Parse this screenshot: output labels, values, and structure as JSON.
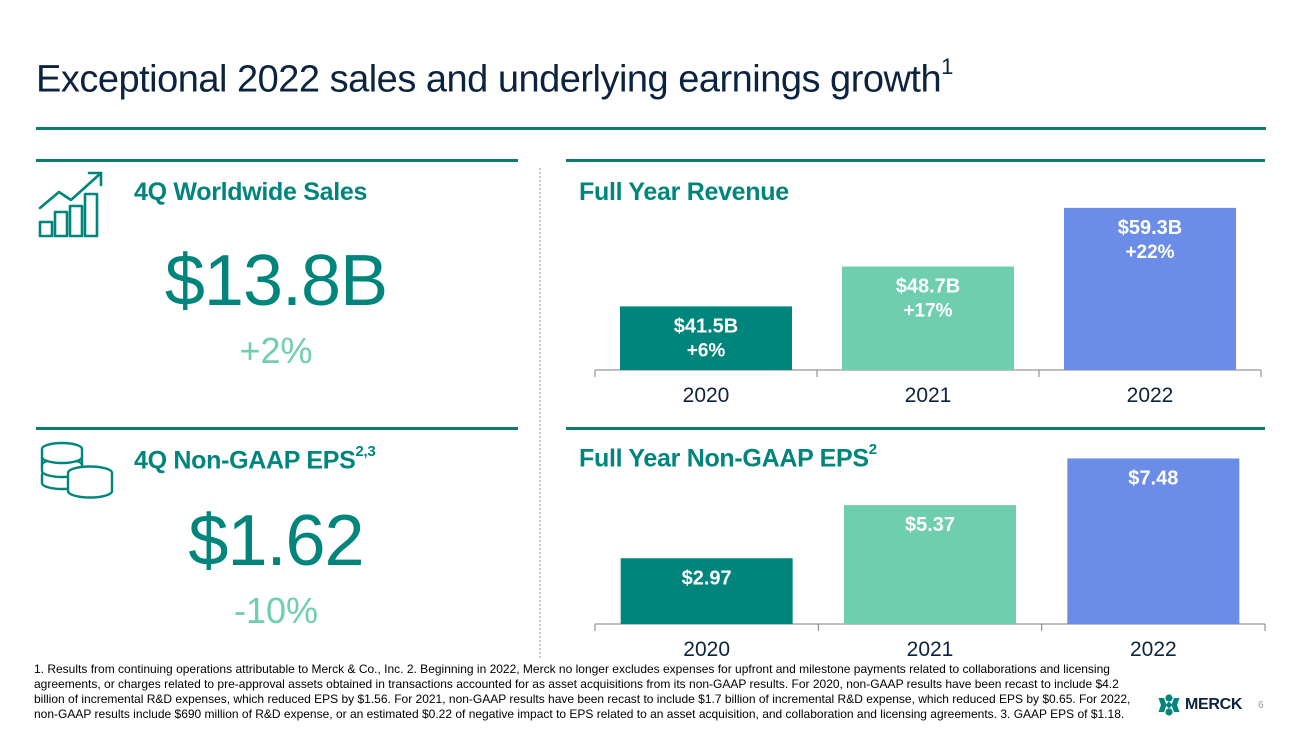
{
  "slide": {
    "title": "Exceptional 2022 sales and underlying earnings growth",
    "title_sup": "1",
    "page_number": "6"
  },
  "kpis": {
    "sales": {
      "heading": "4Q Worldwide Sales",
      "value": "$13.8B",
      "change": "+2%",
      "icon": "growth-chart-icon"
    },
    "eps": {
      "heading": "4Q Non-GAAP EPS",
      "heading_sup": "2,3",
      "value": "$1.62",
      "change": "-10%",
      "icon": "coins-icon"
    }
  },
  "chart_data": [
    {
      "type": "bar",
      "title": "Full Year Revenue",
      "title_sup": "",
      "categories": [
        "2020",
        "2021",
        "2022"
      ],
      "values": [
        41.5,
        48.7,
        59.3
      ],
      "unit": "$B",
      "labels": [
        "$41.5B",
        "$48.7B",
        "$59.3B"
      ],
      "changes": [
        "+6%",
        "+17%",
        "+22%"
      ],
      "colors": [
        "#00857c",
        "#6ecead",
        "#6b8de8"
      ],
      "ylim": [
        30,
        60
      ],
      "xlabel": "",
      "ylabel": "",
      "grid": false,
      "legend": "none"
    },
    {
      "type": "bar",
      "title": "Full Year Non-GAAP EPS",
      "title_sup": "2",
      "categories": [
        "2020",
        "2021",
        "2022"
      ],
      "values": [
        2.97,
        5.37,
        7.48
      ],
      "unit": "$",
      "labels": [
        "$2.97",
        "$5.37",
        "$7.48"
      ],
      "changes": [
        "",
        "",
        ""
      ],
      "colors": [
        "#00857c",
        "#6ecead",
        "#6b8de8"
      ],
      "ylim": [
        0,
        7.5
      ],
      "xlabel": "",
      "ylabel": "",
      "grid": false,
      "legend": "none"
    }
  ],
  "footnote": "1. Results from continuing operations attributable to Merck & Co., Inc. 2. Beginning in 2022, Merck no longer excludes expenses for upfront and milestone payments related to collaborations and licensing agreements, or charges related to pre-approval assets obtained in transactions accounted for as asset acquisitions from its non-GAAP results. For 2020, non-GAAP results have been recast to include $4.2 billion of incremental R&D expenses, which reduced EPS by $1.56. For 2021, non-GAAP results have been recast to include $1.7 billion of incremental R&D expense, which reduced EPS by $0.65. For 2022, non-GAAP results include $690 million of R&D expense, or an estimated $0.22 of negative impact to EPS  related to an asset acquisition, and collaboration and licensing agreements. 3. GAAP EPS of $1.18.",
  "logo": {
    "text": "MERCK",
    "icon": "merck-logo-icon",
    "color": "#00857c"
  }
}
